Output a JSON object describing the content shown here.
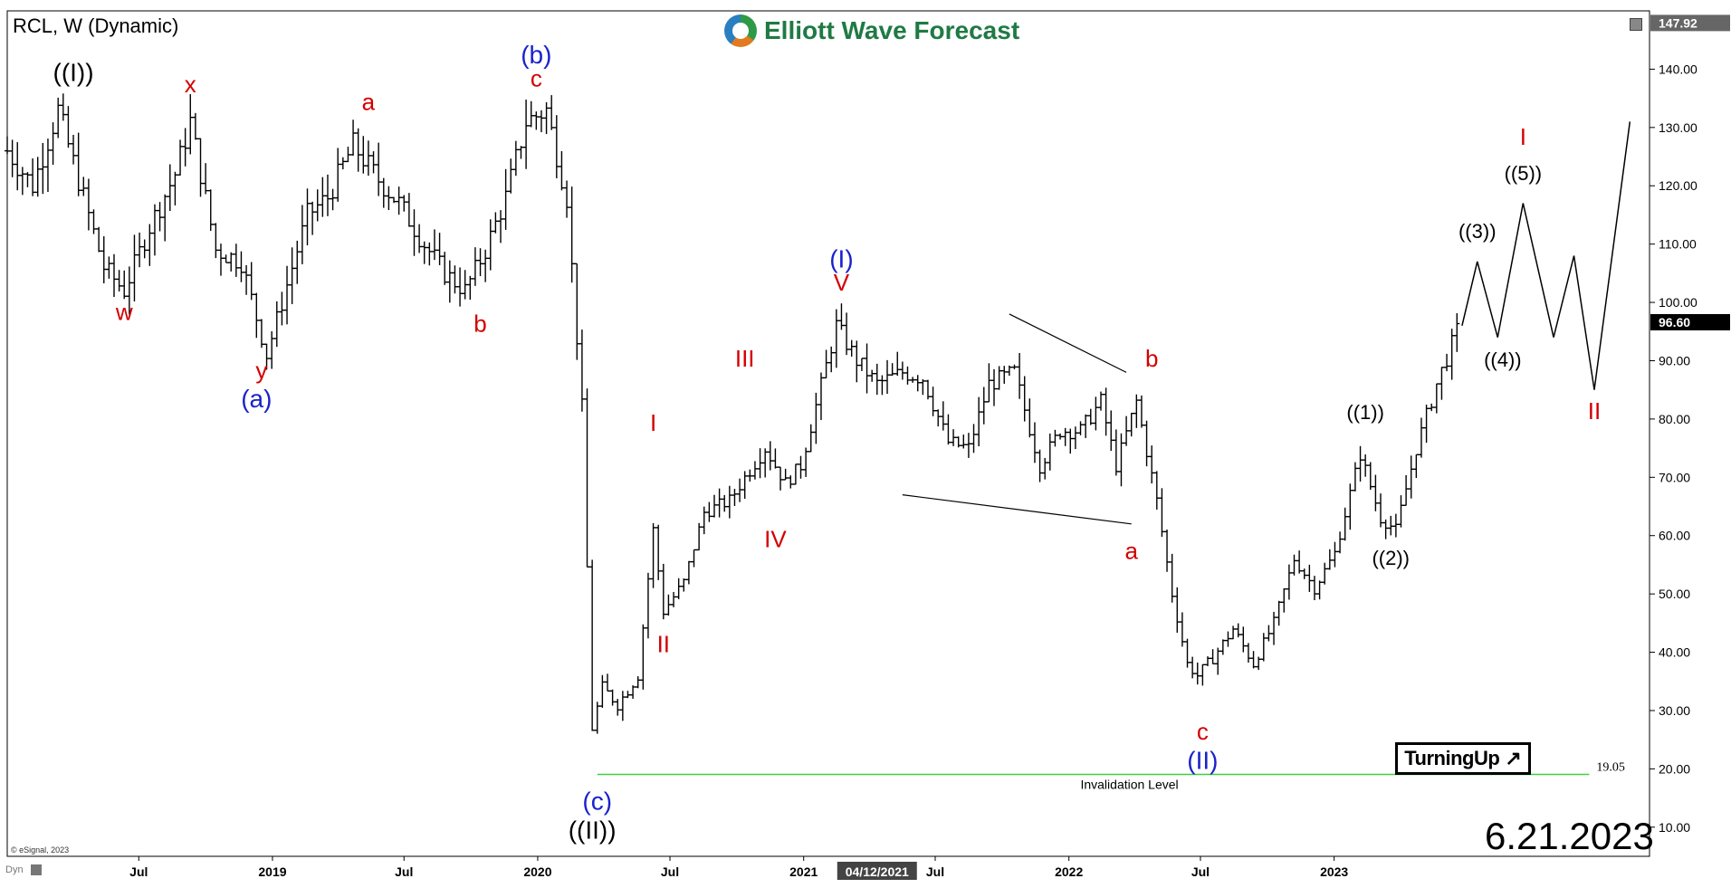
{
  "header": {
    "symbol_label": "RCL, W (Dynamic)"
  },
  "logo": {
    "text": "Elliott Wave Forecast"
  },
  "badge": {
    "text": "TurningUp",
    "arrow": "↗"
  },
  "footer": {
    "date_stamp": "6.21.2023",
    "copyright": "© eSignal, 2023",
    "dyn_label": "Dyn"
  },
  "colors": {
    "red": "#d40000",
    "blue": "#1a22cc",
    "black": "#000000",
    "green": "#3fcf3f"
  },
  "chart_data": {
    "type": "ohlc",
    "timeframe": "weekly",
    "ylim": [
      5,
      150
    ],
    "xlim": [
      "2018-01-01",
      "2024-03-10"
    ],
    "yticks": [
      10,
      20,
      30,
      40,
      50,
      60,
      70,
      80,
      90,
      100,
      110,
      120,
      130,
      140
    ],
    "ytick_labels": [
      "10.00",
      "20.00",
      "30.00",
      "40.00",
      "50.00",
      "60.00",
      "70.00",
      "80.00",
      "90.00",
      "100.00",
      "110.00",
      "120.00",
      "130.00",
      "140.00"
    ],
    "xticks": [
      {
        "date": "2018-07-01",
        "label": "Jul"
      },
      {
        "date": "2019-01-01",
        "label": "2019"
      },
      {
        "date": "2019-07-01",
        "label": "Jul"
      },
      {
        "date": "2020-01-01",
        "label": "2020"
      },
      {
        "date": "2020-07-01",
        "label": "Jul"
      },
      {
        "date": "2021-01-01",
        "label": "2021"
      },
      {
        "date": "2021-07-01",
        "label": "Jul"
      },
      {
        "date": "2022-01-01",
        "label": "2022"
      },
      {
        "date": "2022-07-01",
        "label": "Jul"
      },
      {
        "date": "2023-01-01",
        "label": "2023"
      }
    ],
    "cursor_date": {
      "date": "2021-04-12",
      "label": "04/12/2021"
    },
    "price_boxes": [
      {
        "value": 147.92,
        "label": "147.92",
        "style": "gray"
      },
      {
        "value": 96.6,
        "label": "96.60",
        "style": "black"
      }
    ],
    "price_path": [
      [
        "2018-01-01",
        126
      ],
      [
        "2018-02-05",
        120
      ],
      [
        "2018-03-12",
        133
      ],
      [
        "2018-04-09",
        121
      ],
      [
        "2018-05-14",
        106
      ],
      [
        "2018-06-11",
        102
      ],
      [
        "2018-07-16",
        113
      ],
      [
        "2018-08-20",
        122
      ],
      [
        "2018-09-10",
        131
      ],
      [
        "2018-10-15",
        109
      ],
      [
        "2018-11-19",
        107
      ],
      [
        "2018-12-24",
        91
      ],
      [
        "2019-01-21",
        103
      ],
      [
        "2019-02-18",
        115
      ],
      [
        "2019-03-18",
        118
      ],
      [
        "2019-04-22",
        127
      ],
      [
        "2019-05-27",
        121
      ],
      [
        "2019-06-24",
        117
      ],
      [
        "2019-07-29",
        110
      ],
      [
        "2019-08-26",
        105
      ],
      [
        "2019-09-23",
        102
      ],
      [
        "2019-10-21",
        109
      ],
      [
        "2019-11-18",
        118
      ],
      [
        "2019-12-16",
        131
      ],
      [
        "2020-01-13",
        133
      ],
      [
        "2020-02-10",
        118
      ],
      [
        "2020-03-02",
        82
      ],
      [
        "2020-03-16",
        27
      ],
      [
        "2020-03-30",
        34
      ],
      [
        "2020-04-20",
        31
      ],
      [
        "2020-05-18",
        36
      ],
      [
        "2020-06-08",
        61
      ],
      [
        "2020-06-22",
        47
      ],
      [
        "2020-07-20",
        52
      ],
      [
        "2020-08-17",
        64
      ],
      [
        "2020-09-21",
        66
      ],
      [
        "2020-10-12",
        70
      ],
      [
        "2020-11-09",
        75
      ],
      [
        "2020-12-07",
        69
      ],
      [
        "2020-12-28",
        72
      ],
      [
        "2021-02-15",
        96
      ],
      [
        "2021-03-15",
        90
      ],
      [
        "2021-04-12",
        86
      ],
      [
        "2021-05-17",
        88
      ],
      [
        "2021-06-14",
        87
      ],
      [
        "2021-07-19",
        76
      ],
      [
        "2021-08-16",
        75
      ],
      [
        "2021-09-13",
        86
      ],
      [
        "2021-10-18",
        88
      ],
      [
        "2021-11-22",
        72
      ],
      [
        "2021-12-20",
        78
      ],
      [
        "2022-01-17",
        78
      ],
      [
        "2022-02-14",
        83
      ],
      [
        "2022-03-07",
        72
      ],
      [
        "2022-04-04",
        83
      ],
      [
        "2022-05-02",
        66
      ],
      [
        "2022-05-23",
        50
      ],
      [
        "2022-06-13",
        38
      ],
      [
        "2022-06-27",
        36
      ],
      [
        "2022-07-18",
        39
      ],
      [
        "2022-08-15",
        44
      ],
      [
        "2022-09-12",
        38
      ],
      [
        "2022-10-10",
        45
      ],
      [
        "2022-11-07",
        56
      ],
      [
        "2022-12-05",
        51
      ],
      [
        "2023-01-02",
        57
      ],
      [
        "2023-02-06",
        74
      ],
      [
        "2023-03-06",
        63
      ],
      [
        "2023-03-27",
        61
      ],
      [
        "2023-04-24",
        75
      ],
      [
        "2023-05-22",
        86
      ],
      [
        "2023-06-19",
        95
      ]
    ],
    "projection_path": [
      [
        "2023-06-26",
        96
      ],
      [
        "2023-07-17",
        107
      ],
      [
        "2023-08-14",
        94
      ],
      [
        "2023-09-18",
        117
      ],
      [
        "2023-10-30",
        94
      ],
      [
        "2023-11-27",
        108
      ],
      [
        "2023-12-25",
        85
      ],
      [
        "2024-02-12",
        131
      ]
    ],
    "trendlines": [
      {
        "from": [
          "2021-10-11",
          98
        ],
        "to": [
          "2022-03-21",
          88
        ]
      },
      {
        "from": [
          "2021-05-17",
          67
        ],
        "to": [
          "2022-03-28",
          62
        ]
      }
    ],
    "invalidation": {
      "value": 19.05,
      "label": "19.05",
      "text": "Invalidation Level",
      "from": "2020-03-23",
      "to": "2023-12-18"
    },
    "wave_labels": [
      {
        "date": "2018-04-02",
        "price": 138,
        "text": "((I))",
        "color": "black"
      },
      {
        "date": "2018-06-11",
        "price": 97,
        "text": "w",
        "color": "red"
      },
      {
        "date": "2018-09-10",
        "price": 136,
        "text": "x",
        "color": "red"
      },
      {
        "date": "2018-12-17",
        "price": 87,
        "text": "y",
        "color": "red"
      },
      {
        "date": "2018-12-10",
        "price": 82,
        "text": "(a)",
        "color": "blue"
      },
      {
        "date": "2019-05-13",
        "price": 133,
        "text": "a",
        "color": "red"
      },
      {
        "date": "2019-10-14",
        "price": 95,
        "text": "b",
        "color": "red"
      },
      {
        "date": "2019-12-30",
        "price": 141,
        "text": "(b)",
        "color": "blue"
      },
      {
        "date": "2019-12-30",
        "price": 137,
        "text": "c",
        "color": "red"
      },
      {
        "date": "2020-03-23",
        "price": 13,
        "text": "(c)",
        "color": "blue"
      },
      {
        "date": "2020-03-16",
        "price": 8,
        "text": "((II))",
        "color": "black"
      },
      {
        "date": "2020-06-08",
        "price": 78,
        "text": "I",
        "color": "red"
      },
      {
        "date": "2020-06-22",
        "price": 40,
        "text": "II",
        "color": "red"
      },
      {
        "date": "2020-10-12",
        "price": 89,
        "text": "III",
        "color": "red"
      },
      {
        "date": "2020-11-23",
        "price": 58,
        "text": "IV",
        "color": "red"
      },
      {
        "date": "2021-02-22",
        "price": 102,
        "text": "V",
        "color": "red"
      },
      {
        "date": "2021-02-22",
        "price": 106,
        "text": "(I)",
        "color": "blue"
      },
      {
        "date": "2022-03-28",
        "price": 56,
        "text": "a",
        "color": "red"
      },
      {
        "date": "2022-04-25",
        "price": 89,
        "text": "b",
        "color": "red"
      },
      {
        "date": "2022-07-04",
        "price": 25,
        "text": "c",
        "color": "red"
      },
      {
        "date": "2022-07-04",
        "price": 20,
        "text": "(II)",
        "color": "blue"
      },
      {
        "date": "2023-02-13",
        "price": 80,
        "text": "((1))",
        "color": "black"
      },
      {
        "date": "2023-03-20",
        "price": 55,
        "text": "((2))",
        "color": "black"
      },
      {
        "date": "2023-07-17",
        "price": 111,
        "text": "((3))",
        "color": "black"
      },
      {
        "date": "2023-08-21",
        "price": 89,
        "text": "((4))",
        "color": "black"
      },
      {
        "date": "2023-09-18",
        "price": 121,
        "text": "((5))",
        "color": "black"
      },
      {
        "date": "2023-09-18",
        "price": 127,
        "text": "I",
        "color": "red"
      },
      {
        "date": "2023-12-25",
        "price": 80,
        "text": "II",
        "color": "red"
      }
    ]
  }
}
